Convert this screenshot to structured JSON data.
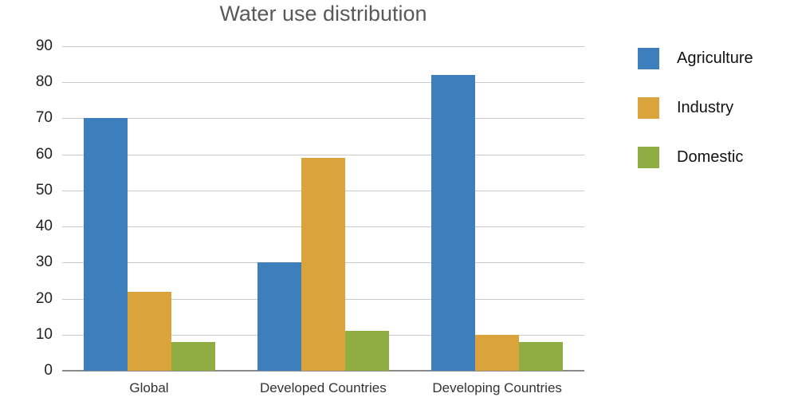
{
  "chart_data": {
    "type": "bar",
    "title": "Water use distribution",
    "categories": [
      "Global",
      "Developed Countries",
      "Developing Countries"
    ],
    "series": [
      {
        "name": "Agriculture",
        "color": "#3d7ebd",
        "values": [
          70,
          30,
          82
        ]
      },
      {
        "name": "Industry",
        "color": "#dba33c",
        "values": [
          22,
          59,
          10
        ]
      },
      {
        "name": "Domestic",
        "color": "#8fad43",
        "values": [
          8,
          11,
          8
        ]
      }
    ],
    "ylim": [
      0,
      90
    ],
    "yticks": [
      0,
      10,
      20,
      30,
      40,
      50,
      60,
      70,
      80,
      90
    ],
    "grid": true,
    "legend_position": "right"
  }
}
